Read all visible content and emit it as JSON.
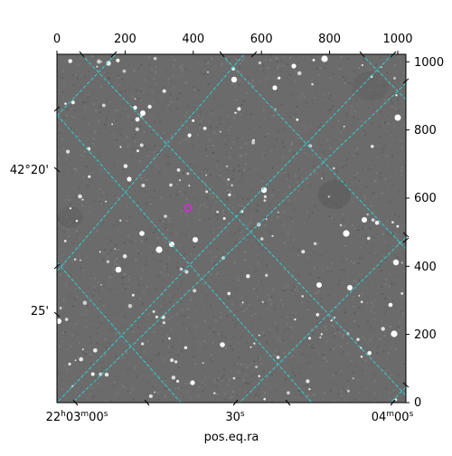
{
  "image": {
    "x_range": [
      0,
      1024
    ],
    "y_range": [
      0,
      1024
    ],
    "top_ticks": [
      "0",
      "200",
      "400",
      "600",
      "800",
      "1000"
    ],
    "right_ticks": [
      "0",
      "200",
      "400",
      "600",
      "800",
      "1000"
    ],
    "left_coord_labels": [
      "42°20'",
      "25'"
    ],
    "bottom_coord_labels": {
      "first": {
        "h": "22",
        "m": "03",
        "s": "00"
      },
      "middle": {
        "s": "30"
      },
      "last": {
        "m": "04",
        "s": "00"
      }
    },
    "xlabel": "pos.eq.ra",
    "marker_color": "#cc33cc",
    "grid_color": "#33cccc"
  }
}
